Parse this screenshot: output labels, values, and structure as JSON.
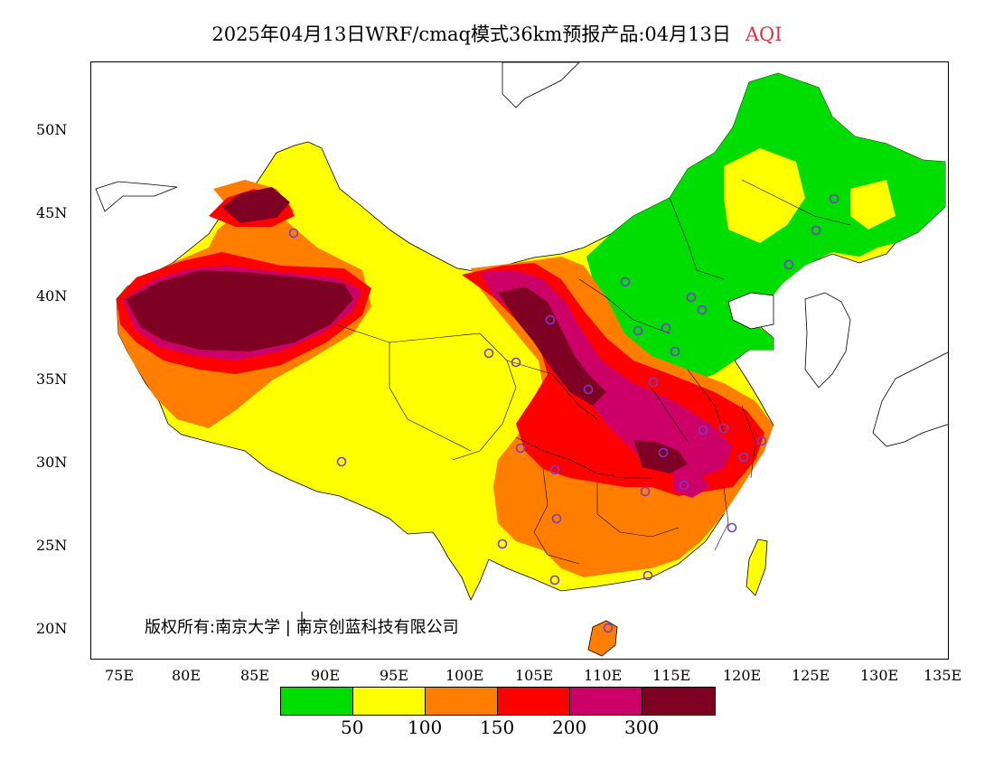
{
  "title": {
    "main": "2025年04月13日WRF/cmaq模式36km预报产品:04月13日",
    "variable": "AQI"
  },
  "axes": {
    "y_labels": [
      "50N",
      "45N",
      "40N",
      "35N",
      "30N",
      "25N",
      "20N"
    ],
    "x_labels": [
      "75E",
      "80E",
      "85E",
      "90E",
      "95E",
      "100E",
      "105E",
      "110E",
      "115E",
      "120E",
      "125E",
      "130E",
      "135E"
    ]
  },
  "copyright": "版权所有:南京大学 | 南京创蓝科技有限公司",
  "legend": {
    "colors": [
      "#00dd00",
      "#ffff00",
      "#ff7e00",
      "#ff0000",
      "#cc0066",
      "#7e0023"
    ],
    "labels": [
      "50",
      "100",
      "150",
      "200",
      "300"
    ]
  },
  "colors": {
    "title_accent": "#e0303a",
    "city_marker": "#7a3ad0",
    "coastline": "#000000"
  }
}
